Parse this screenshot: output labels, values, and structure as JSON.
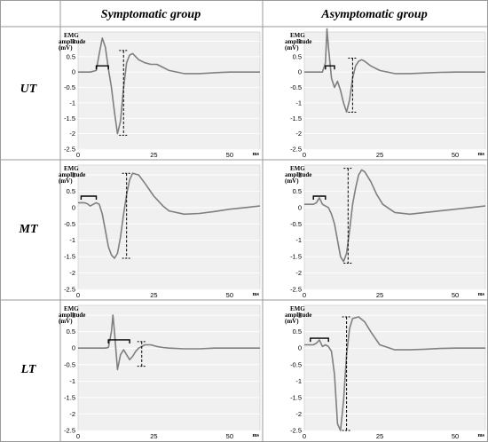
{
  "headers": {
    "col1": "Symptomatic group",
    "col2": "Asymptomatic group"
  },
  "rows": [
    "UT",
    "MT",
    "LT"
  ],
  "axis_common": {
    "ylabel_lines": [
      "EMG",
      "amplitude",
      "(mV)"
    ],
    "x_unit": "ms",
    "x_ticks": [
      0,
      25,
      50
    ],
    "y_ticks": [
      1,
      0.5,
      0,
      -0.5,
      -1,
      -1.5,
      -2,
      -2.5
    ],
    "ylim": [
      -2.5,
      1.3
    ],
    "xlim": [
      0,
      60
    ]
  },
  "colors": {
    "trace": "#7f7f7f",
    "plot_bg": "#f0f0f0",
    "grid": "#ffffff",
    "frame": "#c8c8c8",
    "marker": "#000000"
  },
  "chart_data": [
    {
      "type": "line",
      "row": "UT",
      "group": "Symptomatic group",
      "x": [
        0,
        4,
        6,
        7,
        8,
        9,
        10,
        11,
        12,
        13,
        14,
        15,
        16,
        17,
        18,
        19,
        20,
        22,
        24,
        26,
        28,
        30,
        35,
        40,
        45,
        50,
        55,
        60
      ],
      "y": [
        0,
        0,
        0.05,
        0.6,
        1.1,
        0.8,
        0.1,
        -0.5,
        -1.3,
        -2.0,
        -1.6,
        -0.5,
        0.3,
        0.55,
        0.6,
        0.5,
        0.4,
        0.3,
        0.25,
        0.25,
        0.15,
        0.05,
        -0.05,
        -0.05,
        -0.02,
        0,
        0,
        0
      ],
      "latency_bracket": {
        "x": [
          6,
          10
        ],
        "y": 0.2
      },
      "amplitude_line": {
        "x": 15,
        "y_top": 0.7,
        "y_bottom": -2.05
      }
    },
    {
      "type": "line",
      "row": "UT",
      "group": "Asymptomatic group",
      "x": [
        0,
        4,
        6,
        7,
        7.5,
        8,
        9,
        10,
        11,
        12,
        13,
        14,
        15,
        16,
        17,
        18,
        19,
        20,
        22,
        25,
        30,
        35,
        40,
        45,
        50,
        55,
        60
      ],
      "y": [
        0,
        0,
        0,
        0.3,
        1.4,
        0.8,
        -0.2,
        -0.5,
        -0.3,
        -0.6,
        -1.0,
        -1.3,
        -0.9,
        -0.2,
        0.2,
        0.35,
        0.4,
        0.35,
        0.2,
        0.05,
        -0.05,
        -0.05,
        -0.03,
        -0.01,
        0,
        0,
        0
      ],
      "latency_bracket": {
        "x": [
          7,
          10
        ],
        "y": 0.2
      },
      "amplitude_line": {
        "x": 16,
        "y_top": 0.45,
        "y_bottom": -1.3
      }
    },
    {
      "type": "line",
      "row": "MT",
      "group": "Symptomatic group",
      "x": [
        0,
        2,
        3,
        4,
        5,
        6,
        7,
        8,
        9,
        10,
        11,
        12,
        13,
        14,
        15,
        16,
        17,
        18,
        20,
        22,
        25,
        28,
        30,
        35,
        40,
        45,
        50,
        55,
        60
      ],
      "y": [
        0.15,
        0.15,
        0.12,
        0.05,
        0.1,
        0.15,
        0.1,
        -0.2,
        -0.7,
        -1.2,
        -1.45,
        -1.55,
        -1.4,
        -0.9,
        -0.2,
        0.4,
        0.85,
        1.05,
        1.0,
        0.75,
        0.35,
        0.05,
        -0.1,
        -0.2,
        -0.18,
        -0.12,
        -0.05,
        0,
        0.05
      ],
      "latency_bracket": {
        "x": [
          1,
          6
        ],
        "y": 0.35
      },
      "amplitude_line": {
        "x": 16,
        "y_top": 1.05,
        "y_bottom": -1.55
      }
    },
    {
      "type": "line",
      "row": "MT",
      "group": "Asymptomatic group",
      "x": [
        0,
        3,
        4,
        5,
        6,
        7,
        8,
        9,
        10,
        11,
        12,
        13,
        14,
        15,
        16,
        17,
        18,
        19,
        20,
        22,
        24,
        26,
        30,
        35,
        40,
        45,
        50,
        55,
        60
      ],
      "y": [
        0.1,
        0.1,
        0.15,
        0.3,
        0.1,
        0.05,
        0.0,
        -0.2,
        -0.5,
        -1.0,
        -1.5,
        -1.65,
        -1.4,
        -0.7,
        0.1,
        0.6,
        1.0,
        1.15,
        1.1,
        0.8,
        0.4,
        0.1,
        -0.15,
        -0.2,
        -0.15,
        -0.1,
        -0.05,
        0,
        0.05
      ],
      "latency_bracket": {
        "x": [
          3,
          7
        ],
        "y": 0.35
      },
      "amplitude_line": {
        "x": 14.5,
        "y_top": 1.2,
        "y_bottom": -1.7
      }
    },
    {
      "type": "line",
      "row": "LT",
      "group": "Symptomatic group",
      "x": [
        0,
        5,
        9,
        10,
        11,
        11.5,
        12,
        13,
        14,
        15,
        16,
        17,
        18,
        19,
        20,
        21,
        22,
        24,
        26,
        28,
        30,
        35,
        40,
        45,
        50,
        55,
        60
      ],
      "y": [
        0,
        0,
        0,
        0.02,
        0.5,
        1.0,
        0.5,
        -0.65,
        -0.2,
        -0.05,
        -0.2,
        -0.35,
        -0.25,
        -0.1,
        0.0,
        0.05,
        0.1,
        0.1,
        0.05,
        0.02,
        0,
        -0.02,
        -0.02,
        0,
        0,
        0,
        0
      ],
      "latency_bracket": {
        "x": [
          10,
          17
        ],
        "y": 0.25
      },
      "amplitude_line": {
        "x": 21,
        "y_top": 0.2,
        "y_bottom": -0.55
      }
    },
    {
      "type": "line",
      "row": "LT",
      "group": "Asymptomatic group",
      "x": [
        0,
        3,
        4,
        5,
        6,
        7,
        8,
        9,
        10,
        11,
        12,
        13,
        14,
        15,
        16,
        18,
        20,
        22,
        25,
        30,
        35,
        40,
        45,
        50,
        55,
        60
      ],
      "y": [
        0.1,
        0.1,
        0.15,
        0.25,
        0.05,
        0.1,
        0.05,
        -0.1,
        -0.8,
        -2.3,
        -2.5,
        -1.6,
        -0.2,
        0.6,
        0.9,
        0.95,
        0.8,
        0.5,
        0.1,
        -0.05,
        -0.05,
        -0.03,
        -0.01,
        0,
        0,
        0
      ],
      "latency_bracket": {
        "x": [
          2,
          8
        ],
        "y": 0.3
      },
      "amplitude_line": {
        "x": 14,
        "y_top": 0.95,
        "y_bottom": -2.5
      }
    }
  ]
}
